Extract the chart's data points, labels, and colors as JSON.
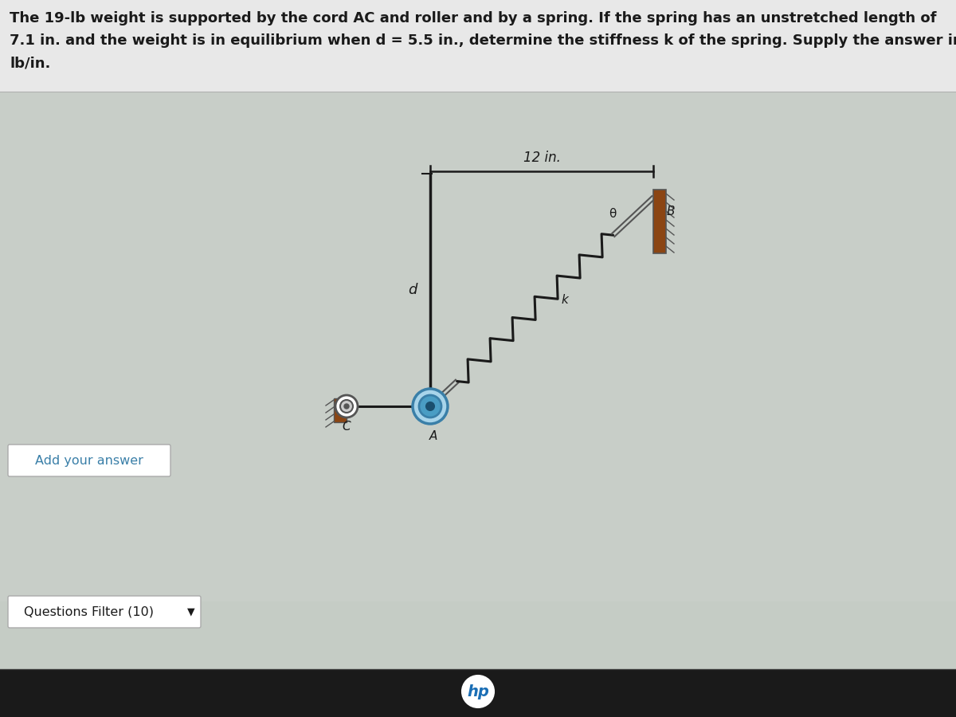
{
  "bg_color": "#c5ccc5",
  "panel_bg": "#d0d6d0",
  "text_color": "#1a1a1a",
  "title_lines": [
    "The 19-lb weight is supported by the cord AC and roller and by a spring. If the spring has an unstretched length of",
    "7.1 in. and the weight is in equilibrium when d = 5.5 in., determine the stiffness k of the spring. Supply the answer in",
    "lb/in."
  ],
  "title_fontsize": 13.0,
  "add_answer_text": "Add your answer",
  "questions_filter_text": "Questions Filter (10)",
  "dim_label": "12 in.",
  "label_d": "d",
  "label_A": "A",
  "label_C": "C",
  "label_B": "B",
  "label_k": "k",
  "label_theta": "θ",
  "line_color": "#1a1a1a",
  "spring_color": "#1a1a1a",
  "wall_brown": "#8b4513",
  "wall_gray": "#555555",
  "roller_outer_face": "#a8d4ea",
  "roller_outer_edge": "#3a7fa8",
  "roller_mid_face": "#4a9dc4",
  "roller_mid_edge": "#3a7fa8",
  "roller_core_face": "#1a4f6e",
  "pin_face": "#ffffff",
  "pin_edge": "#555555",
  "cord_color": "#555555",
  "hp_bg": "#1a1a1a",
  "hp_text": "#1a6eb5",
  "btn_edge": "#aaaaaa",
  "add_ans_color": "#3a7fa8",
  "diagram_panel_bg": "#c8cec8"
}
